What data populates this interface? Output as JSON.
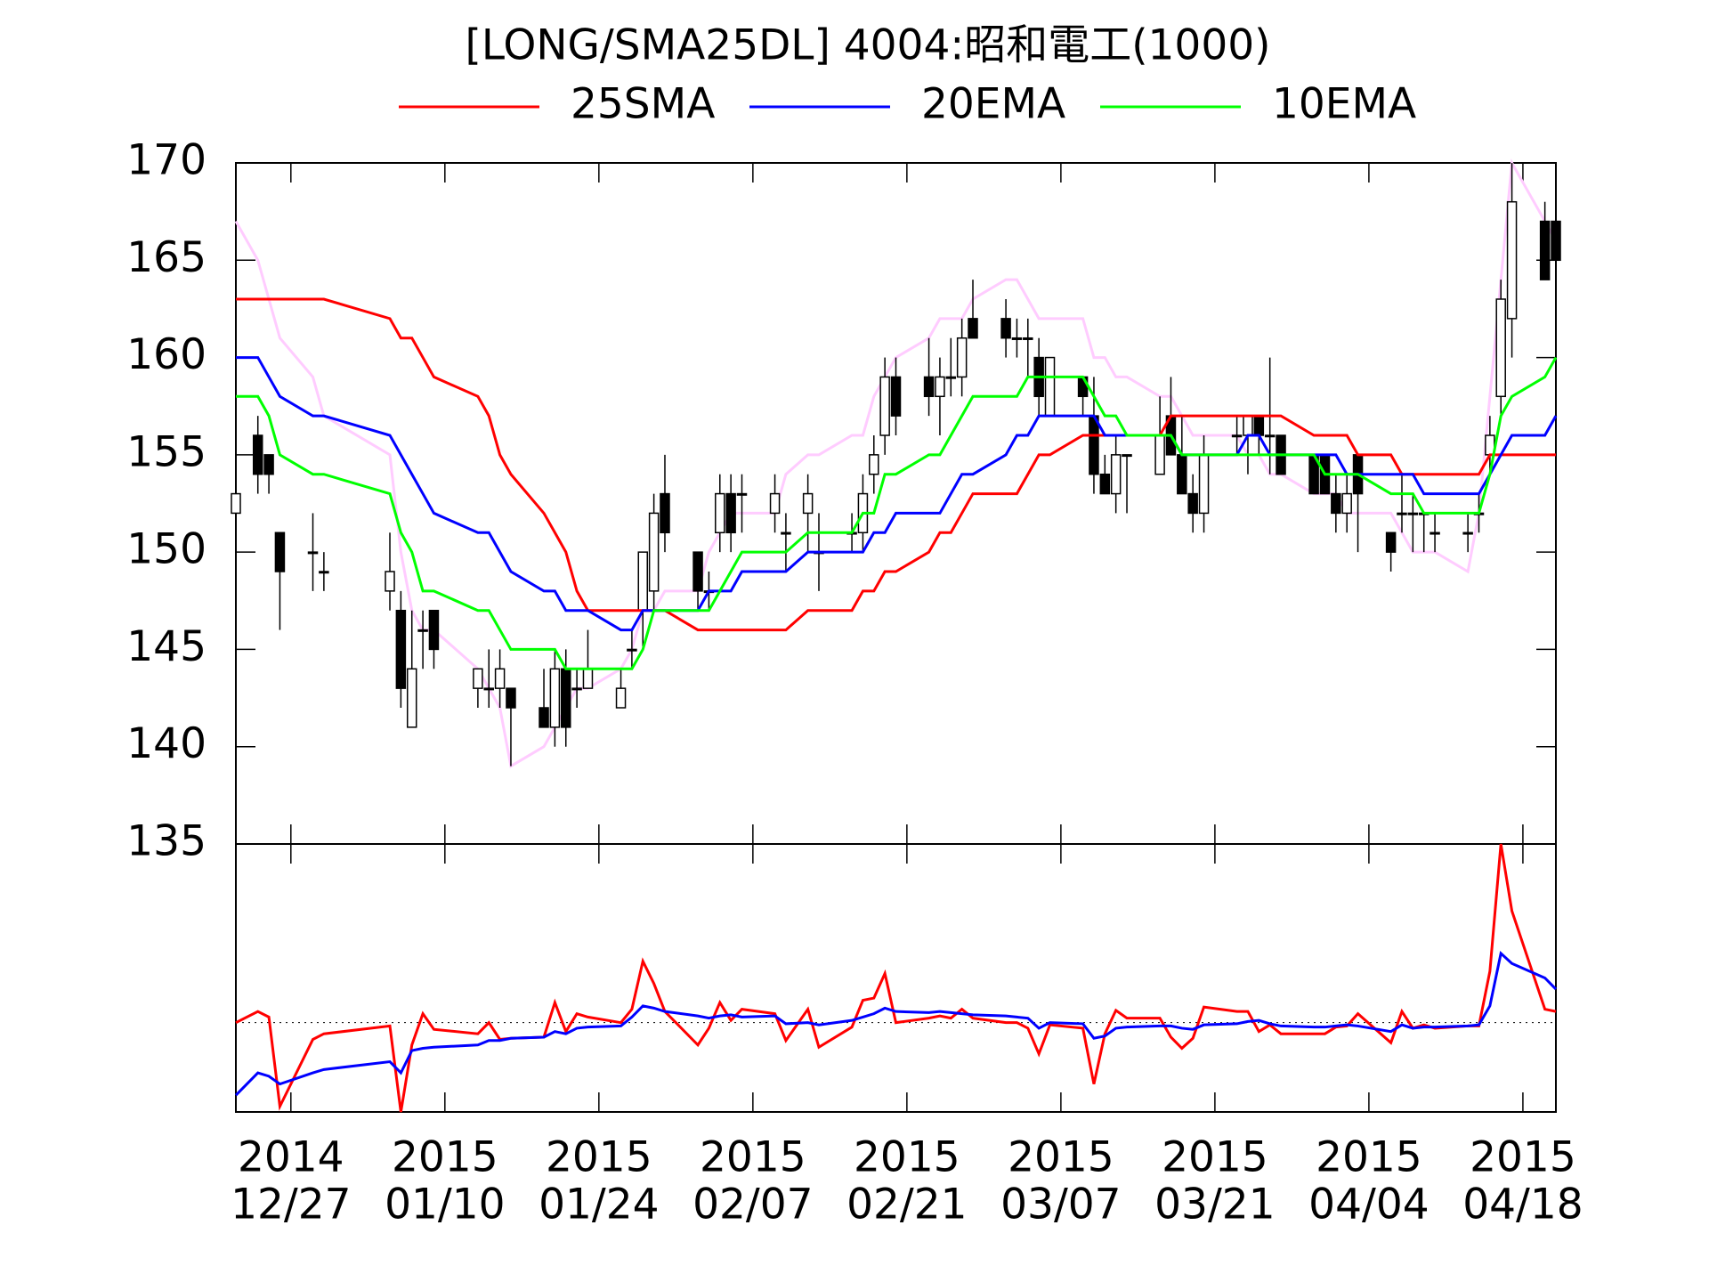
{
  "chart_data": [
    {
      "type": "candlestick",
      "title": "[LONG/SMA25DL] 4004:昭和電工(1000)",
      "x": [
        "2014-12-22",
        "2014-12-24",
        "2014-12-25",
        "2014-12-26",
        "2014-12-29",
        "2014-12-30",
        "2015-01-05",
        "2015-01-06",
        "2015-01-07",
        "2015-01-08",
        "2015-01-09",
        "2015-01-13",
        "2015-01-14",
        "2015-01-15",
        "2015-01-16",
        "2015-01-19",
        "2015-01-20",
        "2015-01-21",
        "2015-01-22",
        "2015-01-23",
        "2015-01-26",
        "2015-01-27",
        "2015-01-28",
        "2015-01-29",
        "2015-01-30",
        "2015-02-02",
        "2015-02-03",
        "2015-02-04",
        "2015-02-05",
        "2015-02-06",
        "2015-02-09",
        "2015-02-10",
        "2015-02-12",
        "2015-02-13",
        "2015-02-16",
        "2015-02-17",
        "2015-02-18",
        "2015-02-19",
        "2015-02-20",
        "2015-02-23",
        "2015-02-24",
        "2015-02-25",
        "2015-02-26",
        "2015-02-27",
        "2015-03-02",
        "2015-03-03",
        "2015-03-04",
        "2015-03-05",
        "2015-03-06",
        "2015-03-09",
        "2015-03-10",
        "2015-03-11",
        "2015-03-12",
        "2015-03-13",
        "2015-03-16",
        "2015-03-17",
        "2015-03-18",
        "2015-03-19",
        "2015-03-20",
        "2015-03-23",
        "2015-03-24",
        "2015-03-25",
        "2015-03-26",
        "2015-03-27",
        "2015-03-30",
        "2015-03-31",
        "2015-04-01",
        "2015-04-02",
        "2015-04-03",
        "2015-04-06",
        "2015-04-07",
        "2015-04-08",
        "2015-04-09",
        "2015-04-10",
        "2015-04-13",
        "2015-04-14",
        "2015-04-15",
        "2015-04-16",
        "2015-04-17",
        "2015-04-20",
        "2015-04-21"
      ],
      "open": [
        152,
        156,
        155,
        151,
        150,
        149,
        148,
        147,
        141,
        146,
        147,
        143,
        143,
        143,
        143,
        142,
        141,
        144,
        143,
        143,
        142,
        145,
        147,
        148,
        153,
        150,
        148,
        151,
        153,
        153,
        152,
        151,
        152,
        150,
        151,
        151,
        154,
        156,
        159,
        159,
        158,
        159,
        159,
        162,
        162,
        161,
        161,
        160,
        157,
        159,
        157,
        154,
        153,
        155,
        154,
        157,
        155,
        153,
        152,
        156,
        156,
        157,
        156,
        156,
        155,
        155,
        153,
        152,
        155,
        151,
        152,
        152,
        152,
        151,
        151,
        152,
        155,
        158,
        162,
        167,
        167
      ],
      "high": [
        153,
        157,
        155,
        151,
        152,
        150,
        151,
        148,
        147,
        147,
        147,
        144,
        145,
        145,
        143,
        144,
        145,
        145,
        144,
        146,
        144,
        146,
        150,
        153,
        155,
        150,
        149,
        154,
        154,
        154,
        154,
        152,
        154,
        152,
        152,
        154,
        156,
        160,
        160,
        161,
        160,
        161,
        162,
        164,
        163,
        162,
        162,
        161,
        160,
        159,
        159,
        155,
        156,
        155,
        158,
        159,
        157,
        154,
        156,
        157,
        157,
        157,
        160,
        156,
        155,
        155,
        154,
        154,
        155,
        151,
        154,
        153,
        152,
        152,
        152,
        153,
        157,
        164,
        170,
        168,
        167
      ],
      "low": [
        152,
        153,
        153,
        146,
        148,
        148,
        147,
        142,
        141,
        144,
        144,
        142,
        142,
        142,
        139,
        141,
        140,
        140,
        142,
        143,
        142,
        144,
        145,
        147,
        150,
        147,
        147,
        150,
        150,
        151,
        151,
        149,
        150,
        148,
        150,
        150,
        153,
        155,
        156,
        157,
        156,
        158,
        158,
        161,
        160,
        160,
        159,
        157,
        157,
        157,
        153,
        153,
        152,
        152,
        154,
        155,
        153,
        151,
        151,
        155,
        154,
        155,
        154,
        154,
        153,
        153,
        151,
        151,
        150,
        149,
        151,
        150,
        150,
        150,
        150,
        151,
        154,
        157,
        160,
        164,
        165
      ],
      "close": [
        153,
        154,
        154,
        149,
        150,
        149,
        149,
        143,
        144,
        146,
        145,
        144,
        143,
        144,
        142,
        141,
        144,
        141,
        143,
        144,
        143,
        145,
        150,
        152,
        151,
        148,
        148,
        153,
        151,
        153,
        153,
        151,
        153,
        150,
        151,
        153,
        155,
        159,
        157,
        158,
        159,
        159,
        161,
        161,
        161,
        161,
        161,
        158,
        160,
        158,
        154,
        153,
        155,
        155,
        156,
        155,
        153,
        152,
        155,
        156,
        157,
        156,
        156,
        154,
        153,
        153,
        152,
        153,
        153,
        150,
        152,
        152,
        152,
        151,
        151,
        152,
        156,
        163,
        168,
        164,
        165
      ],
      "up_color": "#ffffff",
      "down_color": "#000000",
      "series": [
        {
          "name": "25SMA",
          "color": "#ff0000",
          "values": [
            163,
            163,
            163,
            163,
            163,
            163,
            162,
            161,
            161,
            160,
            159,
            158,
            157,
            155,
            154,
            152,
            151,
            150,
            148,
            147,
            147,
            147,
            147,
            147,
            147,
            146,
            146,
            146,
            146,
            146,
            146,
            146,
            147,
            147,
            147,
            148,
            148,
            149,
            149,
            150,
            151,
            151,
            152,
            153,
            153,
            153,
            154,
            155,
            155,
            156,
            156,
            156,
            156,
            156,
            156,
            157,
            157,
            157,
            157,
            157,
            157,
            157,
            157,
            157,
            156,
            156,
            156,
            156,
            155,
            155,
            154,
            154,
            154,
            154,
            154,
            154,
            155,
            155,
            155,
            155,
            155
          ]
        },
        {
          "name": "20EMA",
          "color": "#0000ff",
          "values": [
            160,
            160,
            159,
            158,
            157,
            157,
            156,
            155,
            154,
            153,
            152,
            151,
            151,
            150,
            149,
            148,
            148,
            147,
            147,
            147,
            146,
            146,
            147,
            147,
            147,
            147,
            148,
            148,
            148,
            149,
            149,
            149,
            150,
            150,
            150,
            150,
            151,
            151,
            152,
            152,
            152,
            153,
            154,
            154,
            155,
            156,
            156,
            157,
            157,
            157,
            157,
            156,
            156,
            156,
            156,
            156,
            155,
            155,
            155,
            155,
            156,
            156,
            155,
            155,
            155,
            155,
            155,
            154,
            154,
            154,
            154,
            154,
            153,
            153,
            153,
            153,
            154,
            155,
            156,
            156,
            157
          ]
        },
        {
          "name": "10EMA",
          "color": "#00ff00",
          "values": [
            158,
            158,
            157,
            155,
            154,
            154,
            153,
            151,
            150,
            148,
            148,
            147,
            147,
            146,
            145,
            145,
            145,
            144,
            144,
            144,
            144,
            144,
            145,
            147,
            147,
            147,
            147,
            148,
            149,
            150,
            150,
            150,
            151,
            151,
            151,
            152,
            152,
            154,
            154,
            155,
            155,
            156,
            157,
            158,
            158,
            158,
            159,
            159,
            159,
            159,
            158,
            157,
            157,
            156,
            156,
            156,
            155,
            155,
            155,
            155,
            155,
            155,
            155,
            155,
            155,
            154,
            154,
            154,
            154,
            153,
            153,
            153,
            152,
            152,
            152,
            152,
            154,
            157,
            158,
            159,
            160
          ]
        },
        {
          "color": "#ffccff",
          "values": [
            167,
            165,
            163,
            161,
            159,
            157,
            155,
            150,
            147,
            146,
            146,
            144,
            143,
            142,
            139,
            140,
            141,
            142,
            143,
            143,
            144,
            145,
            147,
            147,
            148,
            148,
            150,
            151,
            152,
            152,
            152,
            154,
            155,
            155,
            156,
            156,
            158,
            159,
            160,
            161,
            162,
            162,
            162,
            163,
            164,
            164,
            163,
            162,
            162,
            162,
            160,
            160,
            159,
            159,
            158,
            158,
            157,
            156,
            156,
            156,
            155,
            155,
            154,
            154,
            153,
            153,
            153,
            152,
            152,
            152,
            151,
            150,
            150,
            150,
            149,
            152,
            158,
            164,
            170,
            167,
            166
          ]
        }
      ],
      "xlim": [
        "2014-12-22",
        "2015-04-21"
      ],
      "ylim": [
        135,
        170
      ],
      "yticks": [
        135,
        140,
        145,
        150,
        155,
        160,
        165,
        170
      ],
      "xticks": [
        {
          "value": "2014-12-27",
          "label": [
            "2014",
            "12/27"
          ]
        },
        {
          "value": "2015-01-10",
          "label": [
            "2015",
            "01/10"
          ]
        },
        {
          "value": "2015-01-24",
          "label": [
            "2015",
            "01/24"
          ]
        },
        {
          "value": "2015-02-07",
          "label": [
            "2015",
            "02/07"
          ]
        },
        {
          "value": "2015-02-21",
          "label": [
            "2015",
            "02/21"
          ]
        },
        {
          "value": "2015-03-07",
          "label": [
            "2015",
            "03/07"
          ]
        },
        {
          "value": "2015-03-21",
          "label": [
            "2015",
            "03/21"
          ]
        },
        {
          "value": "2015-04-04",
          "label": [
            "2015",
            "04/04"
          ]
        },
        {
          "value": "2015-04-18",
          "label": [
            "2015",
            "04/18"
          ]
        }
      ]
    },
    {
      "type": "line",
      "ylim": [
        -8,
        16
      ],
      "baseline": 0,
      "series": [
        {
          "color": "#ff0000",
          "values": [
            0,
            1,
            0.5,
            -7.5,
            -1.5,
            -1,
            -0.3,
            -8,
            -2,
            0.8,
            -0.6,
            -1,
            0,
            -1.5,
            -1.4,
            -1.3,
            1.8,
            -0.8,
            0.8,
            0.5,
            0,
            1.2,
            5.5,
            3.5,
            1,
            -2,
            -0.5,
            1.8,
            0.2,
            1.2,
            0.8,
            -1.6,
            1.2,
            -2.2,
            -0.4,
            2,
            2.2,
            4.4,
            0,
            0.4,
            0.6,
            0.4,
            1.2,
            0.4,
            0,
            0,
            -0.5,
            -2.8,
            -0.2,
            -0.5,
            -5.5,
            -1,
            1.1,
            0.4,
            0.4,
            -1.3,
            -2.3,
            -1.4,
            1.4,
            1,
            1,
            -0.8,
            -0.2,
            -1,
            -1,
            -1,
            -0.4,
            -0.3,
            0.8,
            -1.8,
            1,
            -0.5,
            -0.2,
            -0.5,
            -0.3,
            -0.3,
            4.6,
            16,
            10,
            1.2,
            1
          ]
        },
        {
          "color": "#0000ff",
          "values": [
            -6.5,
            -4.5,
            -4.8,
            -5.5,
            -4.5,
            -4.2,
            -3.5,
            -4.5,
            -2.5,
            -2.3,
            -2.2,
            -2,
            -1.6,
            -1.6,
            -1.4,
            -1.3,
            -0.8,
            -1,
            -0.5,
            -0.4,
            -0.3,
            0.5,
            1.5,
            1.3,
            1,
            0.6,
            0.4,
            0.6,
            0.7,
            0.5,
            0.6,
            -0.1,
            0,
            -0.2,
            0.2,
            0.5,
            0.8,
            1.3,
            1,
            0.9,
            1,
            0.9,
            0.8,
            0.7,
            0.6,
            0.5,
            0.4,
            -0.5,
            0,
            -0.1,
            -1.4,
            -1.2,
            -0.5,
            -0.4,
            -0.3,
            -0.3,
            -0.5,
            -0.6,
            -0.2,
            -0.1,
            0.1,
            0.2,
            -0.1,
            -0.3,
            -0.4,
            -0.4,
            -0.3,
            -0.2,
            -0.3,
            -0.8,
            -0.2,
            -0.5,
            -0.4,
            -0.4,
            -0.3,
            -0.2,
            1.5,
            6.2,
            5.3,
            4,
            3
          ]
        }
      ]
    }
  ]
}
